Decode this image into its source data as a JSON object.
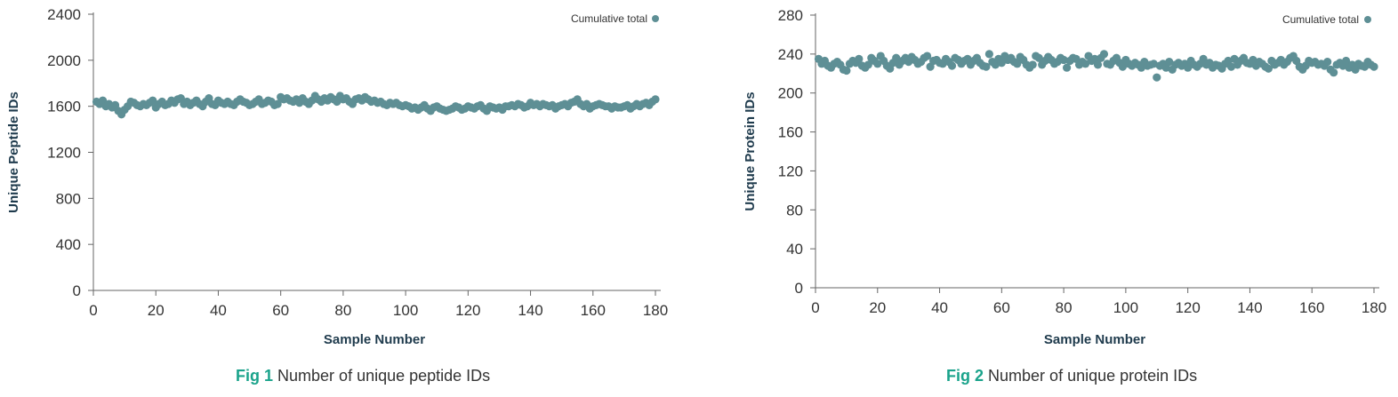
{
  "colors": {
    "marker": "#5e8f95",
    "axis": "#666666",
    "accent": "#1aa38b"
  },
  "captions": [
    {
      "label": "Fig 1",
      "text": "Number of unique peptide IDs"
    },
    {
      "label": "Fig 2",
      "text": "Number of unique protein IDs"
    }
  ],
  "chart_data": [
    {
      "type": "scatter",
      "xlabel": "Sample Number",
      "ylabel": "Unique Peptide IDs",
      "xlim": [
        0,
        180
      ],
      "ylim": [
        0,
        2400
      ],
      "xticks": [
        "0",
        "20",
        "40",
        "60",
        "80",
        "100",
        "120",
        "140",
        "160",
        "180"
      ],
      "yticks": [
        "0",
        "400",
        "800",
        "1200",
        "1600",
        "2000",
        "2400"
      ],
      "grid": false,
      "legend_position": "top-right",
      "series": [
        {
          "name": "Cumulative total",
          "x": [
            1,
            2,
            3,
            4,
            5,
            6,
            7,
            8,
            9,
            10,
            11,
            12,
            13,
            14,
            15,
            16,
            17,
            18,
            19,
            20,
            21,
            22,
            23,
            24,
            25,
            26,
            27,
            28,
            29,
            30,
            31,
            32,
            33,
            34,
            35,
            36,
            37,
            38,
            39,
            40,
            41,
            42,
            43,
            44,
            45,
            46,
            47,
            48,
            49,
            50,
            51,
            52,
            53,
            54,
            55,
            56,
            57,
            58,
            59,
            60,
            61,
            62,
            63,
            64,
            65,
            66,
            67,
            68,
            69,
            70,
            71,
            72,
            73,
            74,
            75,
            76,
            77,
            78,
            79,
            80,
            81,
            82,
            83,
            84,
            85,
            86,
            87,
            88,
            89,
            90,
            91,
            92,
            93,
            94,
            95,
            96,
            97,
            98,
            99,
            100,
            101,
            102,
            103,
            104,
            105,
            106,
            107,
            108,
            109,
            110,
            111,
            112,
            113,
            114,
            115,
            116,
            117,
            118,
            119,
            120,
            121,
            122,
            123,
            124,
            125,
            126,
            127,
            128,
            129,
            130,
            131,
            132,
            133,
            134,
            135,
            136,
            137,
            138,
            139,
            140,
            141,
            142,
            143,
            144,
            145,
            146,
            147,
            148,
            149,
            150,
            151,
            152,
            153,
            154,
            155,
            156,
            157,
            158,
            159,
            160,
            161,
            162,
            163,
            164,
            165,
            166,
            167,
            168,
            169,
            170,
            171,
            172,
            173,
            174,
            175,
            176,
            177,
            178,
            179,
            180
          ],
          "y": [
            1640,
            1620,
            1650,
            1600,
            1620,
            1590,
            1610,
            1560,
            1530,
            1570,
            1600,
            1640,
            1630,
            1610,
            1600,
            1620,
            1610,
            1630,
            1650,
            1590,
            1620,
            1640,
            1610,
            1620,
            1650,
            1630,
            1660,
            1670,
            1620,
            1640,
            1610,
            1630,
            1650,
            1620,
            1600,
            1640,
            1670,
            1620,
            1610,
            1650,
            1630,
            1620,
            1640,
            1620,
            1610,
            1640,
            1660,
            1640,
            1630,
            1610,
            1620,
            1640,
            1660,
            1620,
            1630,
            1650,
            1640,
            1610,
            1620,
            1680,
            1660,
            1670,
            1650,
            1640,
            1660,
            1630,
            1670,
            1640,
            1620,
            1650,
            1690,
            1660,
            1640,
            1670,
            1650,
            1680,
            1660,
            1640,
            1690,
            1660,
            1670,
            1640,
            1620,
            1660,
            1670,
            1650,
            1680,
            1660,
            1640,
            1650,
            1630,
            1640,
            1620,
            1610,
            1630,
            1620,
            1630,
            1610,
            1600,
            1610,
            1600,
            1580,
            1590,
            1570,
            1590,
            1610,
            1580,
            1560,
            1590,
            1600,
            1580,
            1570,
            1560,
            1570,
            1580,
            1600,
            1590,
            1570,
            1580,
            1600,
            1590,
            1580,
            1600,
            1610,
            1580,
            1560,
            1600,
            1590,
            1580,
            1590,
            1570,
            1600,
            1600,
            1610,
            1600,
            1620,
            1610,
            1590,
            1600,
            1630,
            1610,
            1620,
            1600,
            1620,
            1610,
            1600,
            1610,
            1580,
            1600,
            1610,
            1620,
            1600,
            1630,
            1640,
            1660,
            1620,
            1600,
            1620,
            1580,
            1600,
            1610,
            1620,
            1610,
            1600,
            1600,
            1580,
            1600,
            1590,
            1590,
            1600,
            1610,
            1580,
            1600,
            1620,
            1600,
            1620,
            1630,
            1610,
            1640,
            1660
          ]
        }
      ]
    },
    {
      "type": "scatter",
      "xlabel": "Sample Number",
      "ylabel": "Unique Protein IDs",
      "xlim": [
        0,
        180
      ],
      "ylim": [
        0,
        280
      ],
      "xticks": [
        "0",
        "20",
        "40",
        "60",
        "80",
        "100",
        "120",
        "140",
        "160",
        "180"
      ],
      "yticks": [
        "0",
        "40",
        "80",
        "120",
        "160",
        "200",
        "240",
        "280"
      ],
      "grid": false,
      "legend_position": "top-right",
      "series": [
        {
          "name": "Cumulative total",
          "x": [
            1,
            2,
            3,
            4,
            5,
            6,
            7,
            8,
            9,
            10,
            11,
            12,
            13,
            14,
            15,
            16,
            17,
            18,
            19,
            20,
            21,
            22,
            23,
            24,
            25,
            26,
            27,
            28,
            29,
            30,
            31,
            32,
            33,
            34,
            35,
            36,
            37,
            38,
            39,
            40,
            41,
            42,
            43,
            44,
            45,
            46,
            47,
            48,
            49,
            50,
            51,
            52,
            53,
            54,
            55,
            56,
            57,
            58,
            59,
            60,
            61,
            62,
            63,
            64,
            65,
            66,
            67,
            68,
            69,
            70,
            71,
            72,
            73,
            74,
            75,
            76,
            77,
            78,
            79,
            80,
            81,
            82,
            83,
            84,
            85,
            86,
            87,
            88,
            89,
            90,
            91,
            92,
            93,
            94,
            95,
            96,
            97,
            98,
            99,
            100,
            101,
            102,
            103,
            104,
            105,
            106,
            107,
            108,
            109,
            110,
            111,
            112,
            113,
            114,
            115,
            116,
            117,
            118,
            119,
            120,
            121,
            122,
            123,
            124,
            125,
            126,
            127,
            128,
            129,
            130,
            131,
            132,
            133,
            134,
            135,
            136,
            137,
            138,
            139,
            140,
            141,
            142,
            143,
            144,
            145,
            146,
            147,
            148,
            149,
            150,
            151,
            152,
            153,
            154,
            155,
            156,
            157,
            158,
            159,
            160,
            161,
            162,
            163,
            164,
            165,
            166,
            167,
            168,
            169,
            170,
            171,
            172,
            173,
            174,
            175,
            176,
            177,
            178,
            179,
            180
          ],
          "y": [
            235,
            230,
            233,
            228,
            226,
            230,
            232,
            229,
            224,
            223,
            230,
            233,
            231,
            235,
            228,
            226,
            229,
            236,
            233,
            230,
            238,
            233,
            228,
            225,
            231,
            236,
            229,
            233,
            236,
            232,
            237,
            234,
            230,
            232,
            236,
            238,
            227,
            233,
            234,
            231,
            230,
            235,
            232,
            228,
            236,
            234,
            230,
            233,
            235,
            229,
            233,
            236,
            231,
            228,
            227,
            240,
            232,
            229,
            235,
            231,
            238,
            234,
            236,
            232,
            230,
            237,
            234,
            229,
            226,
            229,
            238,
            236,
            229,
            233,
            237,
            234,
            230,
            232,
            236,
            234,
            226,
            233,
            236,
            235,
            229,
            232,
            230,
            238,
            233,
            235,
            229,
            236,
            240,
            230,
            229,
            233,
            236,
            231,
            227,
            234,
            230,
            228,
            231,
            229,
            226,
            232,
            228,
            229,
            230,
            216,
            228,
            230,
            226,
            232,
            224,
            229,
            231,
            228,
            230,
            226,
            233,
            229,
            227,
            230,
            235,
            229,
            231,
            226,
            229,
            228,
            225,
            230,
            233,
            227,
            235,
            229,
            233,
            236,
            231,
            230,
            234,
            228,
            232,
            230,
            227,
            225,
            233,
            229,
            231,
            234,
            229,
            232,
            236,
            238,
            233,
            227,
            224,
            228,
            233,
            231,
            232,
            229,
            230,
            228,
            232,
            224,
            221,
            229,
            231,
            228,
            233,
            226,
            229,
            224,
            230,
            228,
            227,
            232,
            229,
            227
          ]
        }
      ]
    }
  ]
}
